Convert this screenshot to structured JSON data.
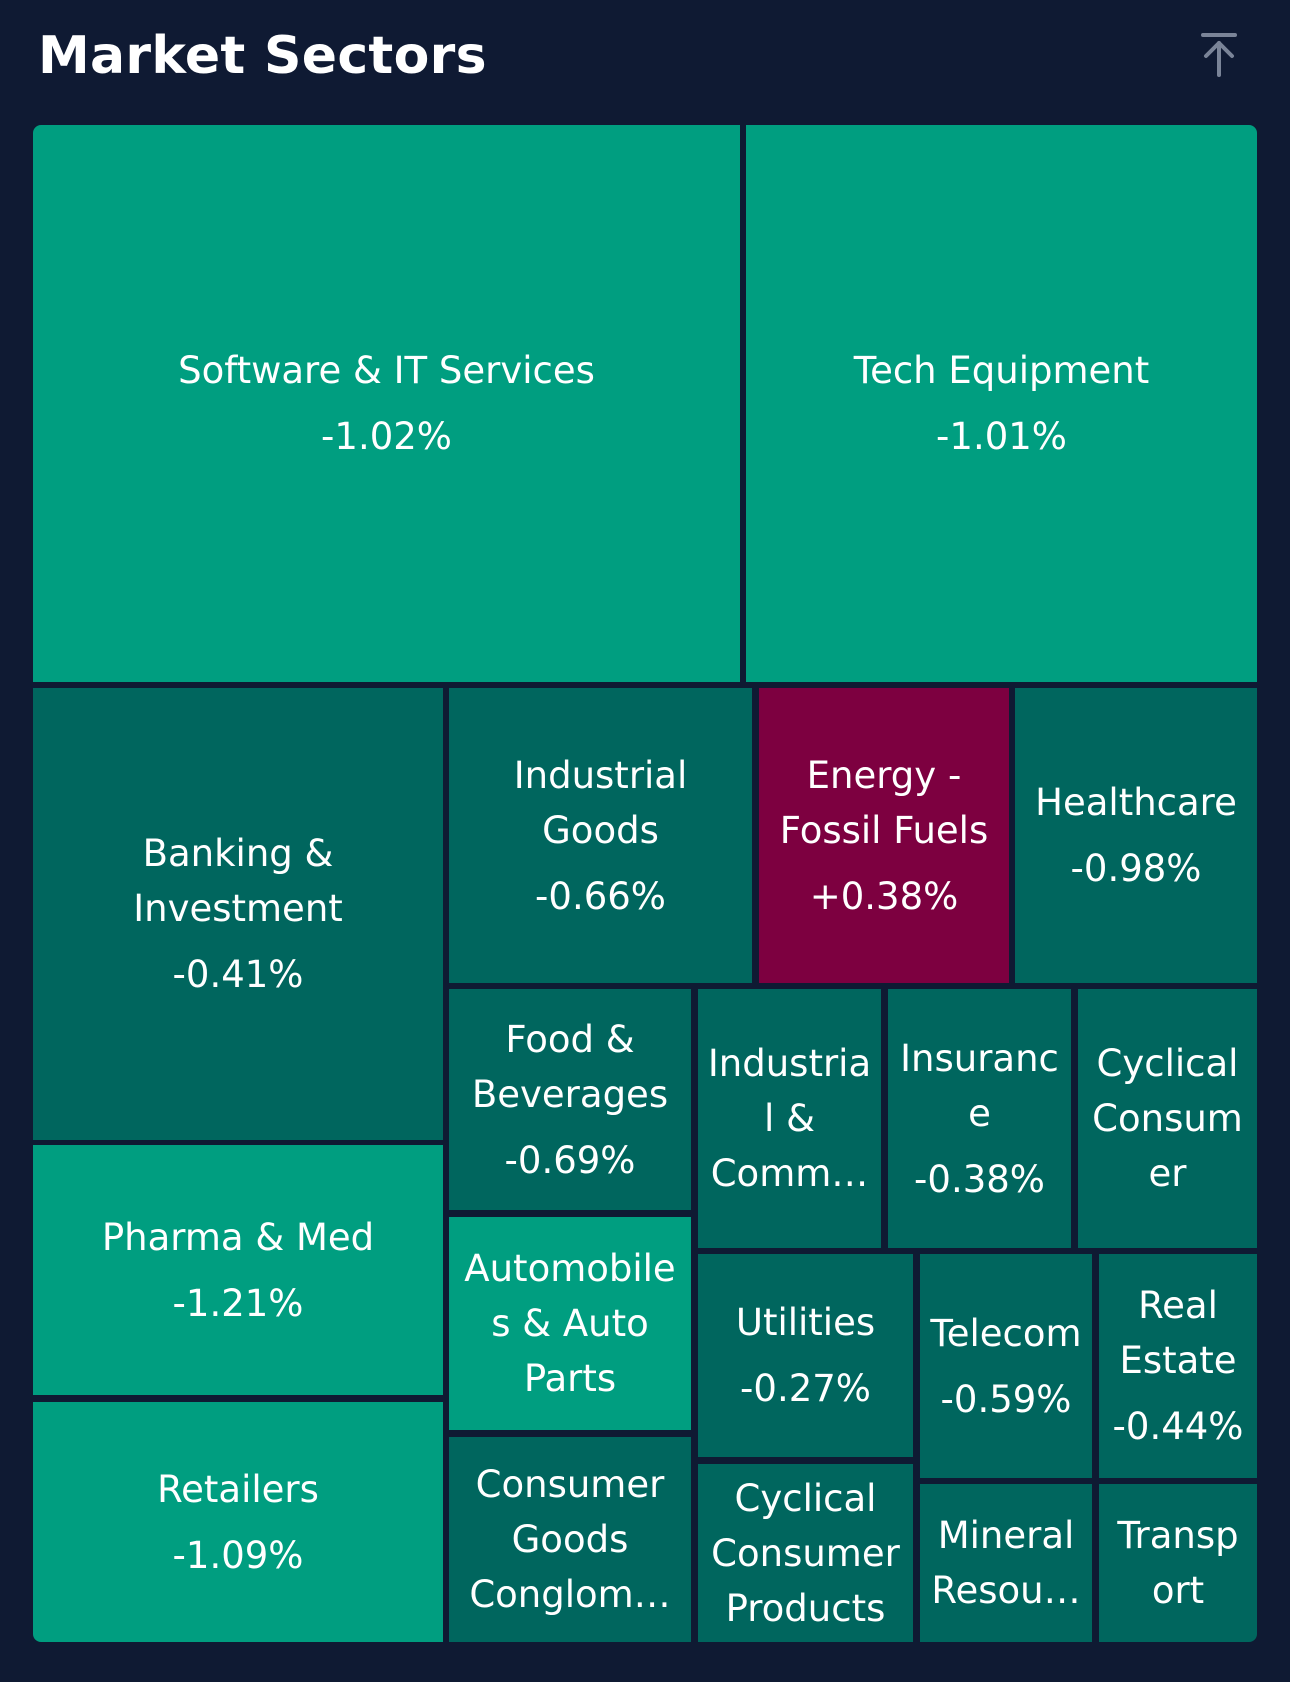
{
  "header": {
    "title": "Market Sectors",
    "collapse_icon": "arrow-up-to-line-icon"
  },
  "colors": {
    "background": "#0f1a33",
    "strong_negative": "#009e80",
    "moderate_negative": "#00665e",
    "positive": "#7d0040"
  },
  "chart_data": {
    "type": "treemap",
    "title": "Market Sectors",
    "items": [
      {
        "name": "Software & IT Services",
        "label": "Software & IT Services",
        "change": "-1.02%",
        "value": -1.02
      },
      {
        "name": "Tech Equipment",
        "label": "Tech Equipment",
        "change": "-1.01%",
        "value": -1.01
      },
      {
        "name": "Banking & Investment",
        "label": "Banking &\nInvestment",
        "change": "-0.41%",
        "value": -0.41
      },
      {
        "name": "Industrial Goods",
        "label": "Industrial\nGoods",
        "change": "-0.66%",
        "value": -0.66
      },
      {
        "name": "Energy - Fossil Fuels",
        "label": "Energy -\nFossil Fuels",
        "change": "+0.38%",
        "value": 0.38
      },
      {
        "name": "Healthcare",
        "label": "Healthcare",
        "change": "-0.98%",
        "value": -0.98
      },
      {
        "name": "Food & Beverages",
        "label": "Food &\nBeverages",
        "change": "-0.69%",
        "value": -0.69
      },
      {
        "name": "Industrial & Commercial",
        "label": "Industria\nl &\nComm…",
        "change": "",
        "value": null
      },
      {
        "name": "Insurance",
        "label": "Insuranc\ne",
        "change": "-0.38%",
        "value": -0.38
      },
      {
        "name": "Cyclical Consumer",
        "label": "Cyclical\nConsum\ner",
        "change": "",
        "value": null
      },
      {
        "name": "Pharma & Med",
        "label": "Pharma & Med",
        "change": "-1.21%",
        "value": -1.21
      },
      {
        "name": "Automobiles & Auto Parts",
        "label": "Automobile\ns & Auto\nParts",
        "change": "",
        "value": null
      },
      {
        "name": "Utilities",
        "label": "Utilities",
        "change": "-0.27%",
        "value": -0.27
      },
      {
        "name": "Telecom",
        "label": "Telecom",
        "change": "-0.59%",
        "value": -0.59
      },
      {
        "name": "Real Estate",
        "label": "Real\nEstate",
        "change": "-0.44%",
        "value": -0.44
      },
      {
        "name": "Retailers",
        "label": "Retailers",
        "change": "-1.09%",
        "value": -1.09
      },
      {
        "name": "Consumer Goods Conglomerates",
        "label": "Consumer\nGoods\nConglom…",
        "change": "",
        "value": null
      },
      {
        "name": "Cyclical Consumer Products",
        "label": "Cyclical\nConsumer\nProducts",
        "change": "",
        "value": null
      },
      {
        "name": "Mineral Resources",
        "label": "Mineral\nResou…",
        "change": "",
        "value": null
      },
      {
        "name": "Transport",
        "label": "Transp\nort",
        "change": "",
        "value": null
      }
    ]
  }
}
